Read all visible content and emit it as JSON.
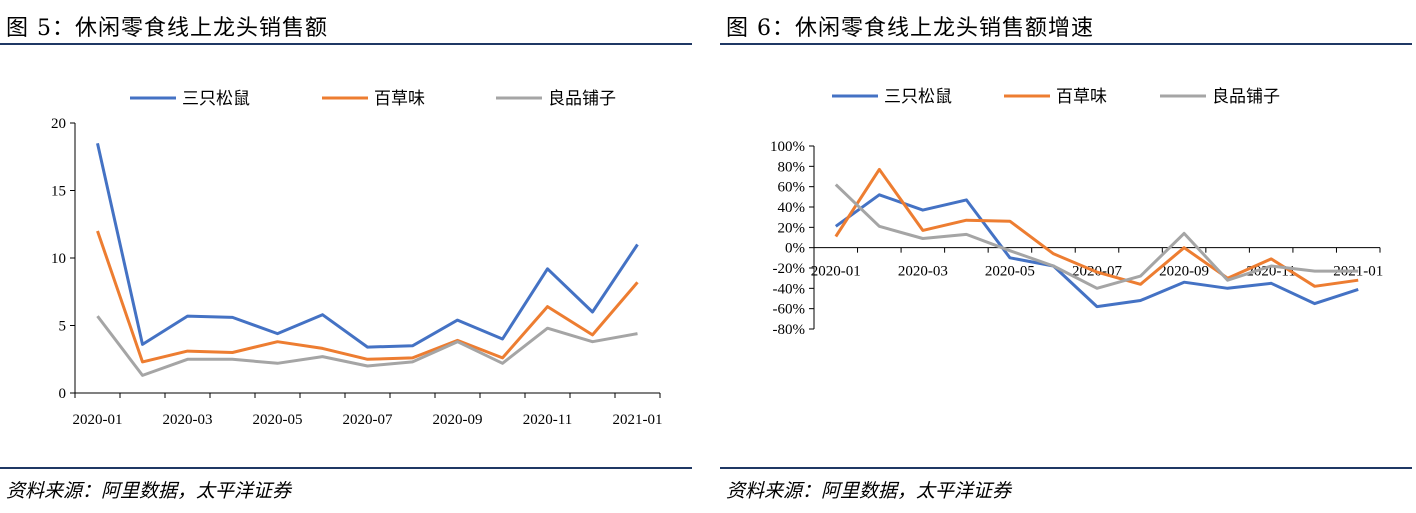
{
  "charts": [
    {
      "fig_title": "图 5：休闲零食线上龙头销售额",
      "source": "资料来源：阿里数据，太平洋证券"
    },
    {
      "fig_title": "图 6：休闲零食线上龙头销售额增速",
      "source": "资料来源：阿里数据，太平洋证券"
    }
  ],
  "chart_data": [
    {
      "type": "line",
      "title": "",
      "xlabel": "",
      "ylabel": "",
      "x_tick_labels": [
        "2020-01",
        "2020-03",
        "2020-05",
        "2020-07",
        "2020-09",
        "2020-11",
        "2021-01"
      ],
      "y_tick_labels": [
        "0",
        "5",
        "10",
        "15",
        "20"
      ],
      "ylim": [
        0,
        20
      ],
      "legend_position": "top",
      "grid": false,
      "series": [
        {
          "name": "三只松鼠",
          "color": "#4472c4",
          "values": [
            18.5,
            3.6,
            5.7,
            5.6,
            4.4,
            5.8,
            3.4,
            3.5,
            5.4,
            4.0,
            9.2,
            6.0,
            11.0
          ]
        },
        {
          "name": "百草味",
          "color": "#ed7d31",
          "values": [
            12.0,
            2.3,
            3.1,
            3.0,
            3.8,
            3.3,
            2.5,
            2.6,
            3.9,
            2.6,
            6.4,
            4.3,
            8.2
          ]
        },
        {
          "name": "良品铺子",
          "color": "#a5a5a5",
          "values": [
            5.7,
            1.3,
            2.5,
            2.5,
            2.2,
            2.7,
            2.0,
            2.3,
            3.8,
            2.2,
            4.8,
            3.8,
            4.4
          ]
        }
      ]
    },
    {
      "type": "line",
      "title": "",
      "xlabel": "",
      "ylabel": "",
      "x_tick_labels": [
        "2020-01",
        "2020-03",
        "2020-05",
        "2020-07",
        "2020-09",
        "2020-11",
        "2021-01"
      ],
      "y_tick_labels": [
        "100%",
        "80%",
        "60%",
        "40%",
        "20%",
        "0%",
        "-20%",
        "-40%",
        "-60%",
        "-80%"
      ],
      "ylim": [
        -80,
        100
      ],
      "legend_position": "top",
      "grid": false,
      "series": [
        {
          "name": "三只松鼠",
          "color": "#4472c4",
          "values": [
            21,
            52,
            37,
            47,
            -10,
            -18,
            -58,
            -52,
            -34,
            -40,
            -35,
            -55,
            -41
          ]
        },
        {
          "name": "百草味",
          "color": "#ed7d31",
          "values": [
            11,
            77,
            17,
            27,
            26,
            -6,
            -24,
            -36,
            0,
            -30,
            -11,
            -38,
            -32
          ]
        },
        {
          "name": "良品铺子",
          "color": "#a5a5a5",
          "values": [
            62,
            21,
            9,
            13,
            -3,
            -18,
            -40,
            -28,
            14,
            -32,
            -18,
            -23,
            -23
          ]
        }
      ]
    }
  ]
}
